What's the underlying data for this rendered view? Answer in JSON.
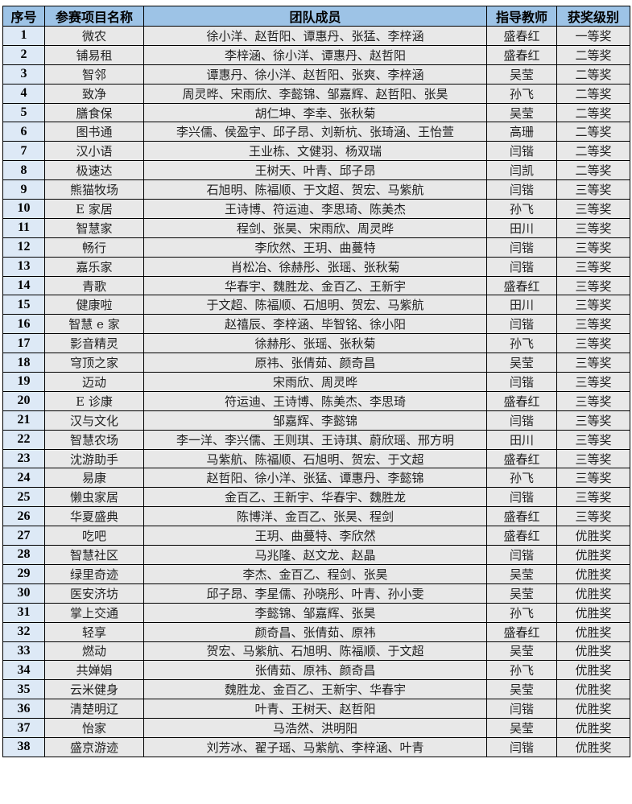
{
  "headers": [
    "序号",
    "参赛项目名称",
    "团队成员",
    "指导教师",
    "获奖级别"
  ],
  "rows": [
    [
      "1",
      "微农",
      "徐小洋、赵哲阳、谭惠丹、张猛、李梓涵",
      "盛春红",
      "一等奖"
    ],
    [
      "2",
      "铺易租",
      "李梓涵、徐小洋、谭惠丹、赵哲阳",
      "盛春红",
      "二等奖"
    ],
    [
      "3",
      "智邻",
      "谭惠丹、徐小洋、赵哲阳、张爽、李梓涵",
      "吴莹",
      "二等奖"
    ],
    [
      "4",
      "致净",
      "周灵晔、宋雨欣、李懿锦、邹嘉辉、赵哲阳、张昊",
      "孙飞",
      "二等奖"
    ],
    [
      "5",
      "膳食保",
      "胡仁坤、李幸、张秋菊",
      "吴莹",
      "二等奖"
    ],
    [
      "6",
      "图书通",
      "李兴儒、侯盈宇、邱子昂、刘新杭、张琦涵、王怡萱",
      "高珊",
      "二等奖"
    ],
    [
      "7",
      "汉小语",
      "王业栋、文健羽、杨双瑞",
      "闫锴",
      "二等奖"
    ],
    [
      "8",
      "极速达",
      "王树天、叶青、邱子昂",
      "闫凯",
      "二等奖"
    ],
    [
      "9",
      "熊猫牧场",
      "石旭明、陈福顺、于文超、贺宏、马紫航",
      "闫锴",
      "三等奖"
    ],
    [
      "10",
      "E 家居",
      "王诗博、符运迪、李思琦、陈美杰",
      "孙飞",
      "三等奖"
    ],
    [
      "11",
      "智慧家",
      "程剑、张昊、宋雨欣、周灵晔",
      "田川",
      "三等奖"
    ],
    [
      "12",
      "畅行",
      "李欣然、王玥、曲蔓特",
      "闫锴",
      "三等奖"
    ],
    [
      "13",
      "嘉乐家",
      "肖松冶、徐赫彤、张瑶、张秋菊",
      "闫锴",
      "三等奖"
    ],
    [
      "14",
      "青歌",
      "华春宇、魏胜龙、金百乙、王新宇",
      "盛春红",
      "三等奖"
    ],
    [
      "15",
      "健康啦",
      "于文超、陈福顺、石旭明、贺宏、马紫航",
      "田川",
      "三等奖"
    ],
    [
      "16",
      "智慧 e 家",
      "赵禧辰、李梓涵、毕智铭、徐小阳",
      "闫锴",
      "三等奖"
    ],
    [
      "17",
      "影音精灵",
      "徐赫彤、张瑶、张秋菊",
      "孙飞",
      "三等奖"
    ],
    [
      "18",
      "穹顶之家",
      "原祎、张倩茹、颜奇昌",
      "吴莹",
      "三等奖"
    ],
    [
      "19",
      "迈动",
      "宋雨欣、周灵晔",
      "闫锴",
      "三等奖"
    ],
    [
      "20",
      "E 诊康",
      "符运迪、王诗博、陈美杰、李思琦",
      "盛春红",
      "三等奖"
    ],
    [
      "21",
      "汉与文化",
      "邹嘉辉、李懿锦",
      "闫锴",
      "三等奖"
    ],
    [
      "22",
      "智慧农场",
      "李一洋、李兴儒、王则琪、王诗琪、蔚欣瑶、邢方明",
      "田川",
      "三等奖"
    ],
    [
      "23",
      "沈游助手",
      "马紫航、陈福顺、石旭明、贺宏、于文超",
      "盛春红",
      "三等奖"
    ],
    [
      "24",
      "易康",
      "赵哲阳、徐小洋、张猛、谭惠丹、李懿锦",
      "孙飞",
      "三等奖"
    ],
    [
      "25",
      "懒虫家居",
      "金百乙、王新宇、华春宇、魏胜龙",
      "闫锴",
      "三等奖"
    ],
    [
      "26",
      "华夏盛典",
      "陈博洋、金百乙、张昊、程剑",
      "盛春红",
      "三等奖"
    ],
    [
      "27",
      "吃吧",
      "王玥、曲蔓特、李欣然",
      "盛春红",
      "优胜奖"
    ],
    [
      "28",
      "智慧社区",
      "马兆隆、赵文龙、赵晶",
      "闫锴",
      "优胜奖"
    ],
    [
      "29",
      "绿里奇迹",
      "李杰、金百乙、程剑、张昊",
      "吴莹",
      "优胜奖"
    ],
    [
      "30",
      "医安济坊",
      "邱子昂、李星儒、孙晓彤、叶青、孙小雯",
      "吴莹",
      "优胜奖"
    ],
    [
      "31",
      "掌上交通",
      "李懿锦、邹嘉辉、张昊",
      "孙飞",
      "优胜奖"
    ],
    [
      "32",
      "轻享",
      "颜奇昌、张倩茹、原祎",
      "盛春红",
      "优胜奖"
    ],
    [
      "33",
      "燃动",
      "贺宏、马紫航、石旭明、陈福顺、于文超",
      "吴莹",
      "优胜奖"
    ],
    [
      "34",
      "共婵娟",
      "张倩茹、原祎、颜奇昌",
      "孙飞",
      "优胜奖"
    ],
    [
      "35",
      "云米健身",
      "魏胜龙、金百乙、王新宇、华春宇",
      "吴莹",
      "优胜奖"
    ],
    [
      "36",
      "清楚明辽",
      "叶青、王树天、赵哲阳",
      "闫锴",
      "优胜奖"
    ],
    [
      "37",
      "怡家",
      "马浩然、洪明阳",
      "吴莹",
      "优胜奖"
    ],
    [
      "38",
      "盛京游迹",
      "刘芳冰、翟子瑶、马紫航、李梓涵、叶青",
      "闫锴",
      "优胜奖"
    ]
  ]
}
